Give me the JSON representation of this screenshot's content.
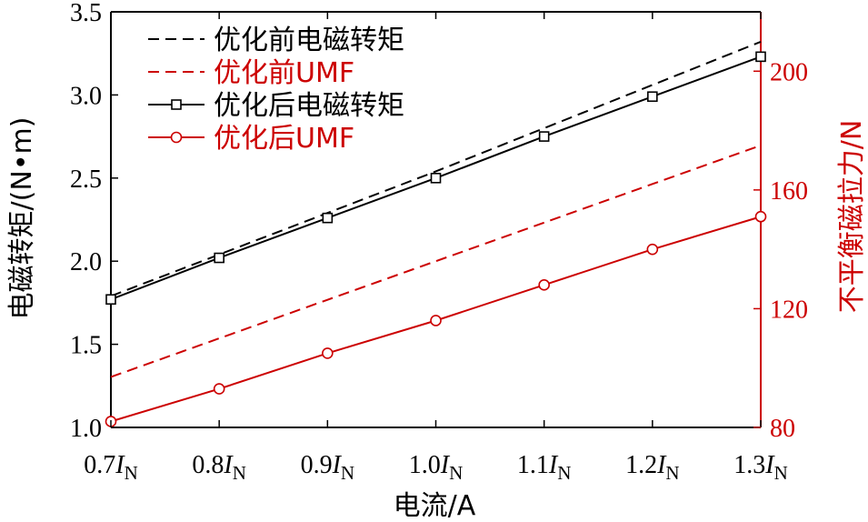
{
  "chart_data": {
    "type": "line",
    "categories": [
      "0.7",
      "0.8",
      "0.9",
      "1.0",
      "1.1",
      "1.2",
      "1.3"
    ],
    "category_suffix_italic": "I",
    "category_suffix_sub": "N",
    "x": [
      0.7,
      0.8,
      0.9,
      1.0,
      1.1,
      1.2,
      1.3
    ],
    "xlabel": "电流/A",
    "ylabel_left": "电磁转矩/(N•m)",
    "ylabel_right": "不平衡磁拉力/N",
    "ylim_left": [
      1.0,
      3.5
    ],
    "ylim_right": [
      80,
      220
    ],
    "yticks_left": [
      "1.0",
      "1.5",
      "2.0",
      "2.5",
      "3.0",
      "3.5"
    ],
    "yticks_left_values": [
      1.0,
      1.5,
      2.0,
      2.5,
      3.0,
      3.5
    ],
    "yticks_right": [
      "80",
      "120",
      "160",
      "200"
    ],
    "yticks_right_values": [
      80,
      120,
      160,
      200
    ],
    "colors": {
      "black": "#000000",
      "red": "#cc0000"
    },
    "series": [
      {
        "name": "优化前电磁转矩",
        "axis": "left",
        "color": "#000000",
        "dash": true,
        "marker": "none",
        "values": [
          1.79,
          2.04,
          2.29,
          2.54,
          2.8,
          3.06,
          3.32
        ]
      },
      {
        "name": "优化前UMF",
        "axis": "right",
        "color": "#cc0000",
        "dash": true,
        "marker": "none",
        "values": [
          97,
          110,
          123,
          136,
          149,
          162,
          175
        ]
      },
      {
        "name": "优化后电磁转矩",
        "axis": "left",
        "color": "#000000",
        "dash": false,
        "marker": "square",
        "values": [
          1.77,
          2.02,
          2.26,
          2.5,
          2.75,
          2.99,
          3.23
        ]
      },
      {
        "name": "优化后UMF",
        "axis": "right",
        "color": "#cc0000",
        "dash": false,
        "marker": "circle",
        "values": [
          82,
          93,
          105,
          116,
          128,
          140,
          151
        ]
      }
    ]
  }
}
